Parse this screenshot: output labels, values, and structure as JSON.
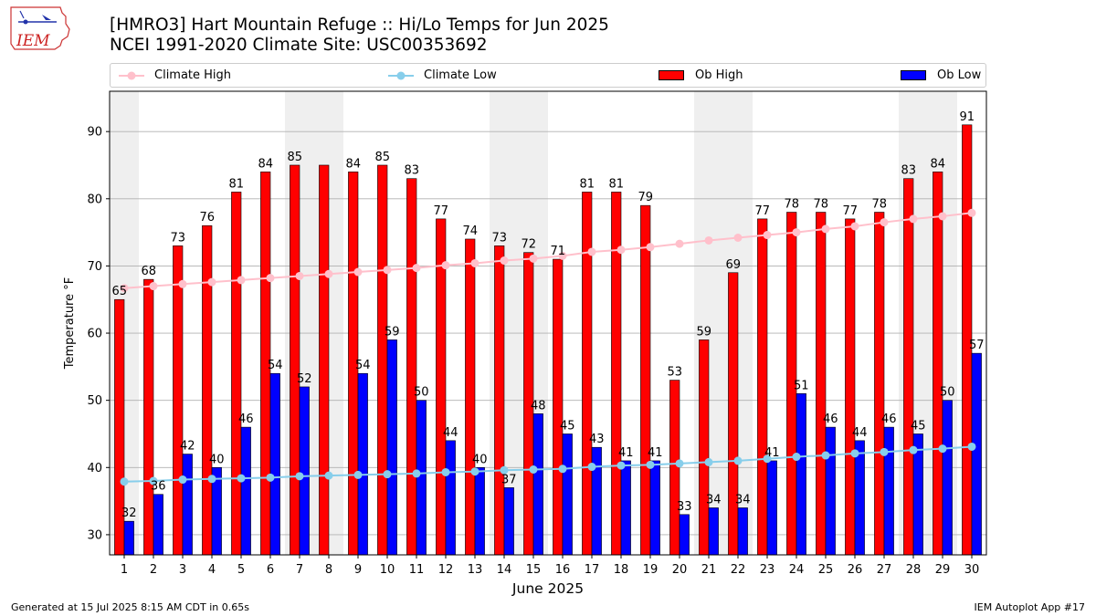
{
  "header": {
    "logo_text": "IEM",
    "title_line1": "[HMRO3] Hart Mountain Refuge :: Hi/Lo Temps for Jun 2025",
    "title_line2": "NCEI 1991-2020 Climate Site: USC00353692"
  },
  "legend": {
    "items": [
      {
        "label": "Climate High",
        "kind": "line",
        "color": "#ffc0cb"
      },
      {
        "label": "Climate Low",
        "kind": "line",
        "color": "#87ceeb"
      },
      {
        "label": "Ob High",
        "kind": "bar",
        "color": "#ff0000"
      },
      {
        "label": "Ob Low",
        "kind": "bar",
        "color": "#0000ff"
      }
    ]
  },
  "footer": {
    "left": "Generated at 15 Jul 2025 8:15 AM CDT in 0.65s",
    "right": "IEM Autoplot App #17"
  },
  "chart_data": {
    "type": "bar",
    "title": "[HMRO3] Hart Mountain Refuge :: Hi/Lo Temps for Jun 2025",
    "subtitle": "NCEI 1991-2020 Climate Site: USC00353692",
    "xlabel": "June 2025",
    "ylabel": "Temperature °F",
    "ylim": [
      27,
      96
    ],
    "yticks": [
      30,
      40,
      50,
      60,
      70,
      80,
      90
    ],
    "grid": true,
    "legend_position": "top",
    "weekend_shading_days": [
      1,
      7,
      8,
      14,
      15,
      21,
      22,
      28,
      29
    ],
    "categories": [
      "1",
      "2",
      "3",
      "4",
      "5",
      "6",
      "7",
      "8",
      "9",
      "10",
      "11",
      "12",
      "13",
      "14",
      "15",
      "16",
      "17",
      "18",
      "19",
      "20",
      "21",
      "22",
      "23",
      "24",
      "25",
      "26",
      "27",
      "28",
      "29",
      "30"
    ],
    "series": [
      {
        "name": "Ob High",
        "type": "bar",
        "color": "#ff0000",
        "values": [
          65,
          68,
          73,
          76,
          81,
          84,
          85,
          85,
          84,
          85,
          83,
          77,
          74,
          73,
          72,
          71,
          81,
          81,
          79,
          53,
          59,
          69,
          77,
          78,
          78,
          77,
          78,
          83,
          84,
          91
        ],
        "labels": [
          "65",
          "68",
          "73",
          "76",
          "81",
          "84",
          "85",
          "",
          "84",
          "85",
          "83",
          "77",
          "74",
          "73",
          "72",
          "71",
          "81",
          "81",
          "79",
          "53",
          "59",
          "69",
          "77",
          "78",
          "78",
          "77",
          "78",
          "83",
          "84",
          "91"
        ]
      },
      {
        "name": "Ob Low",
        "type": "bar",
        "color": "#0000ff",
        "values": [
          32,
          36,
          42,
          40,
          46,
          54,
          52,
          null,
          54,
          59,
          50,
          44,
          40,
          37,
          48,
          45,
          43,
          41,
          41,
          33,
          34,
          34,
          41,
          51,
          46,
          44,
          46,
          45,
          50,
          57
        ],
        "labels": [
          "32",
          "36",
          "42",
          "40",
          "46",
          "54",
          "52",
          "",
          "54",
          "59",
          "50",
          "44",
          "40",
          "37",
          "48",
          "45",
          "43",
          "41",
          "41",
          "33",
          "34",
          "34",
          "41",
          "51",
          "46",
          "44",
          "46",
          "45",
          "50",
          "57"
        ]
      },
      {
        "name": "Climate High",
        "type": "line",
        "color": "#ffc0cb",
        "values": [
          66.7,
          67.0,
          67.3,
          67.6,
          67.9,
          68.2,
          68.5,
          68.8,
          69.1,
          69.4,
          69.7,
          70.1,
          70.4,
          70.8,
          71.1,
          71.5,
          72.1,
          72.4,
          72.8,
          73.3,
          73.8,
          74.2,
          74.6,
          75.0,
          75.5,
          75.9,
          76.5,
          77.0,
          77.4,
          77.9
        ]
      },
      {
        "name": "Climate Low",
        "type": "line",
        "color": "#87ceeb",
        "values": [
          37.9,
          38.0,
          38.2,
          38.3,
          38.4,
          38.5,
          38.7,
          38.8,
          38.9,
          39.0,
          39.1,
          39.3,
          39.4,
          39.6,
          39.7,
          39.8,
          40.1,
          40.3,
          40.4,
          40.6,
          40.8,
          41.0,
          41.3,
          41.6,
          41.8,
          42.1,
          42.3,
          42.6,
          42.8,
          43.1
        ]
      }
    ]
  }
}
